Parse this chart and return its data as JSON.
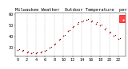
{
  "title": "Milwaukee Weather  Outdoor Temperature  per Hour  (24 Hours)",
  "background_color": "#ffffff",
  "plot_bg_color": "#ffffff",
  "dot_color": "#cc0000",
  "dot_color2": "#111111",
  "highlight_box_color": "#ff0000",
  "hours": [
    0,
    1,
    2,
    3,
    4,
    5,
    6,
    7,
    8,
    9,
    10,
    11,
    12,
    13,
    14,
    15,
    16,
    17,
    18,
    19,
    20,
    21,
    22,
    23
  ],
  "temps": [
    28,
    27,
    26,
    25,
    25,
    26,
    27,
    30,
    33,
    37,
    41,
    45,
    49,
    52,
    54,
    55,
    54,
    52,
    50,
    47,
    44,
    41,
    38,
    55
  ],
  "ylim": [
    22,
    62
  ],
  "xlim": [
    -0.5,
    23.5
  ],
  "xlabel_ticks": [
    0,
    2,
    4,
    6,
    8,
    10,
    12,
    14,
    16,
    18,
    20,
    22
  ],
  "xlabel_labels": [
    "0",
    "2",
    "4",
    "6",
    "8",
    "10",
    "12",
    "14",
    "16",
    "18",
    "20",
    "22"
  ],
  "ytick_vals": [
    30,
    40,
    50,
    60
  ],
  "ytick_labels": [
    "30",
    "40",
    "50",
    "60"
  ],
  "vgrid_positions": [
    2,
    4,
    6,
    8,
    10,
    12,
    14,
    16,
    18,
    20,
    22
  ],
  "last_hour": 23,
  "last_temp": 55,
  "title_fontsize": 4.0,
  "tick_fontsize": 3.5,
  "fig_width": 1.6,
  "fig_height": 0.87,
  "dpi": 100
}
